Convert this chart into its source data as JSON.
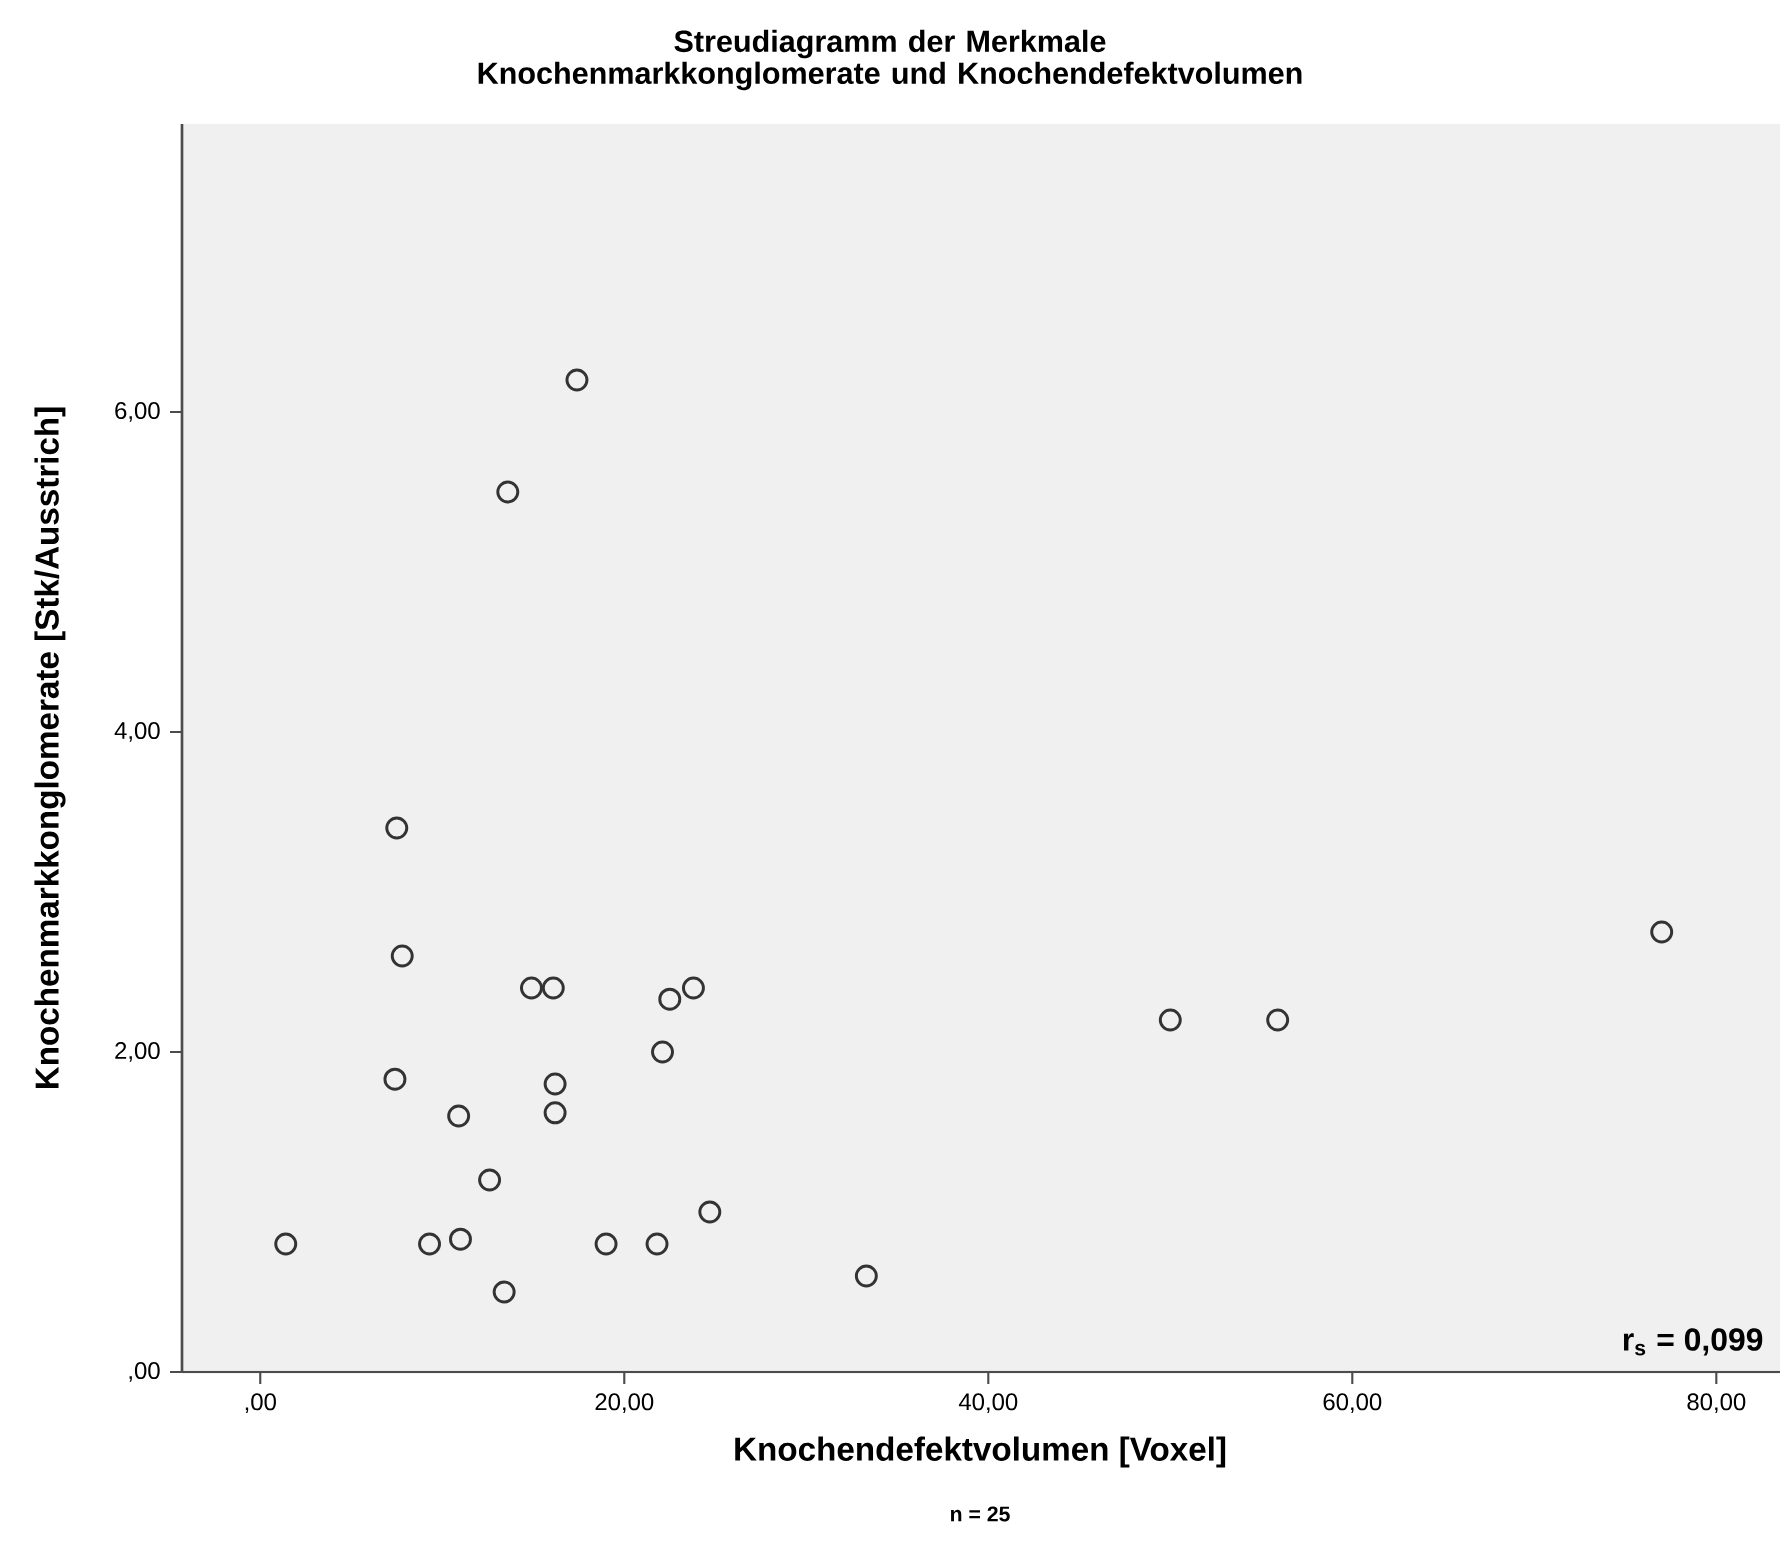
{
  "chart_data": {
    "type": "scatter",
    "title": "Streudiagramm der Merkmale Knochenmarkkonglomerate und Knochendefektvolumen",
    "xlabel": "Knochendefektvolumen [Voxel]",
    "ylabel": "Knochenmarkkonglomerate [Stk/Ausstrich]",
    "annotations": [
      "r$_{s}$ = 0,099",
      "n = 25"
    ],
    "xlim": [
      -4.3,
      83.5
    ],
    "ylim": [
      0,
      7.8
    ],
    "xticks": [
      {
        "value": 0,
        "label": ",00"
      },
      {
        "value": 20,
        "label": "20,00"
      },
      {
        "value": 40,
        "label": "40,00"
      },
      {
        "value": 60,
        "label": "60,00"
      },
      {
        "value": 80,
        "label": "80,00"
      }
    ],
    "yticks": [
      {
        "value": 0,
        "label": ",00"
      },
      {
        "value": 2,
        "label": "2,00"
      },
      {
        "value": 4,
        "label": "4,00"
      },
      {
        "value": 6,
        "label": "6,00"
      }
    ],
    "grid": false,
    "marker": "circle",
    "series": [
      {
        "color": "#333333",
        "x": [
          1.4,
          7.5,
          7.8,
          7.4,
          10.9,
          12.6,
          9.3,
          11.0,
          13.4,
          13.6,
          17.4,
          14.9,
          16.1,
          16.2,
          16.2,
          19.0,
          21.8,
          22.1,
          22.5,
          23.8,
          24.7,
          33.3,
          50.0,
          55.9,
          77.0
        ],
        "values": [
          0.8,
          3.4,
          2.6,
          1.83,
          1.6,
          1.2,
          0.8,
          0.83,
          0.5,
          5.5,
          6.2,
          2.4,
          2.4,
          1.8,
          1.62,
          0.8,
          0.8,
          2.0,
          2.33,
          2.4,
          1.0,
          0.6,
          2.2,
          2.2,
          2.75
        ]
      }
    ]
  }
}
